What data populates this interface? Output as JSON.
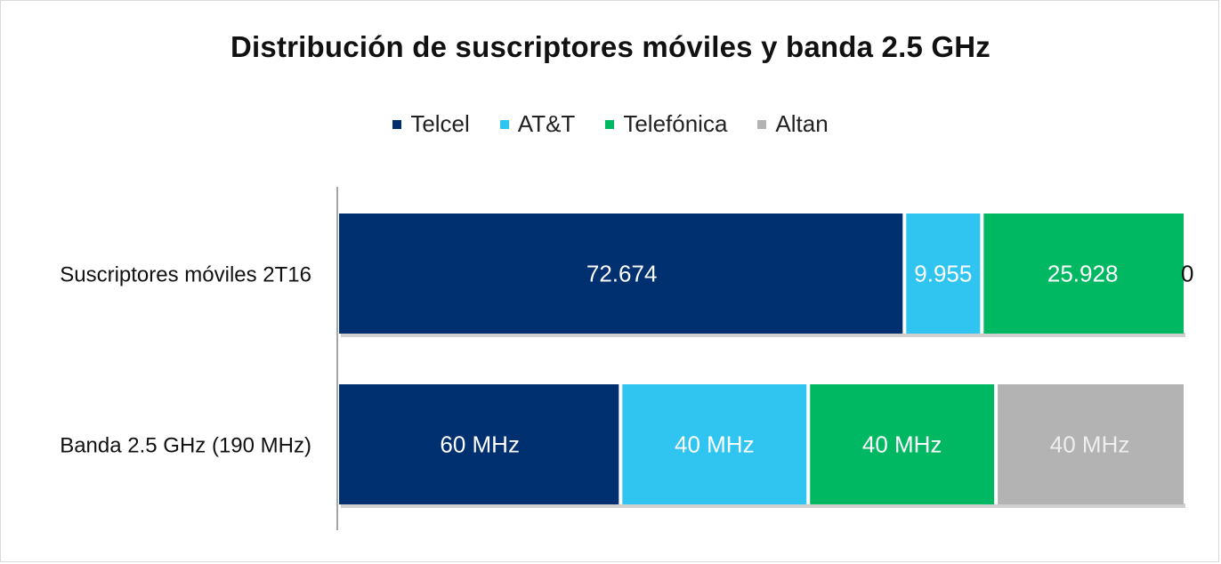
{
  "chart_data": {
    "type": "bar",
    "orientation": "horizontal",
    "stacked": "percent",
    "title": "Distribución de suscriptores móviles y banda 2.5 GHz",
    "categories": [
      "Suscriptores móviles 2T16",
      "Banda 2.5 GHz (190 MHz)"
    ],
    "series": [
      {
        "name": "Telcel",
        "values": [
          72.674,
          60
        ],
        "labels": [
          "72.674",
          "60 MHz"
        ],
        "color": "#003070"
      },
      {
        "name": "AT&T",
        "values": [
          9.955,
          40
        ],
        "labels": [
          "9.955",
          "40 MHz"
        ],
        "color": "#30c4f0"
      },
      {
        "name": "Telefónica",
        "values": [
          25.928,
          40
        ],
        "labels": [
          "25.928",
          "40 MHz"
        ],
        "color": "#00b862"
      },
      {
        "name": "Altan",
        "values": [
          0,
          40
        ],
        "labels": [
          "0",
          "40 MHz"
        ],
        "color": "#b3b3b3"
      }
    ],
    "legend_position": "top",
    "grid": false,
    "label_colors": {
      "Telcel": "#ffffff",
      "AT&T": "#ffffff",
      "Telefónica": "#ffffff",
      "Altan": "#eeeeee",
      "zero": "#111111"
    }
  }
}
